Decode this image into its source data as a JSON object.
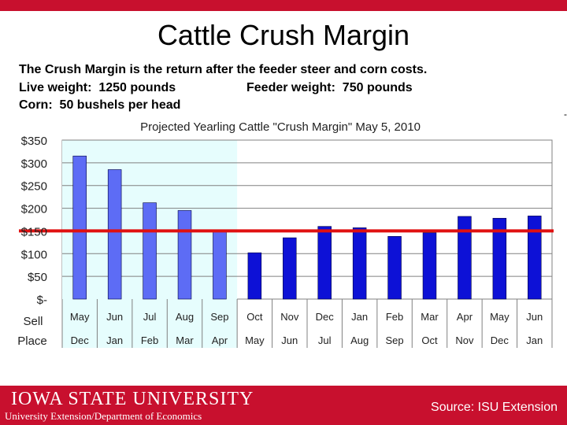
{
  "header": {
    "title": "Cattle Crush Margin",
    "line1": "The Crush Margin is the return after the feeder steer and corn costs.",
    "line2_left": "Live weight:  1250 pounds",
    "line2_right": "Feeder weight:  750 pounds",
    "line3": "Corn:  50 bushels per head"
  },
  "footer": {
    "logo": "IOWA STATE UNIVERSITY",
    "department": "University Extension/Department of Economics",
    "source": "Source: ISU Extension"
  },
  "colors": {
    "brand_red": "#c8102e",
    "bar_light": "#5d6cf5",
    "bar_dark": "#0d11d6",
    "reference_line": "#e01010",
    "highlight_bg": "#e6fdfd"
  },
  "chart_data": {
    "type": "bar",
    "title": "Projected Yearling Cattle \"Crush Margin\" May 5, 2010",
    "categories": [
      "May",
      "Jun",
      "Jul",
      "Aug",
      "Sep",
      "Oct",
      "Nov",
      "Dec",
      "Jan",
      "Feb",
      "Mar",
      "Apr",
      "May",
      "Jun"
    ],
    "place_categories": [
      "Dec",
      "Jan",
      "Feb",
      "Mar",
      "Apr",
      "May",
      "Jun",
      "Jul",
      "Aug",
      "Sep",
      "Oct",
      "Nov",
      "Dec",
      "Jan"
    ],
    "row_labels": [
      "Sell",
      "Place"
    ],
    "values": [
      315,
      285,
      212,
      195,
      150,
      102,
      135,
      160,
      157,
      138,
      146,
      182,
      178,
      183
    ],
    "highlighted_count": 5,
    "reference_line_value": 150,
    "ylim": [
      0,
      350
    ],
    "yticks": [
      0,
      50,
      100,
      150,
      200,
      250,
      300,
      350
    ],
    "ytick_labels": [
      "$-",
      "$50",
      "$100",
      "$150",
      "$200",
      "$250",
      "$300",
      "$350"
    ],
    "xlabel": "",
    "ylabel": "",
    "grid": true
  }
}
